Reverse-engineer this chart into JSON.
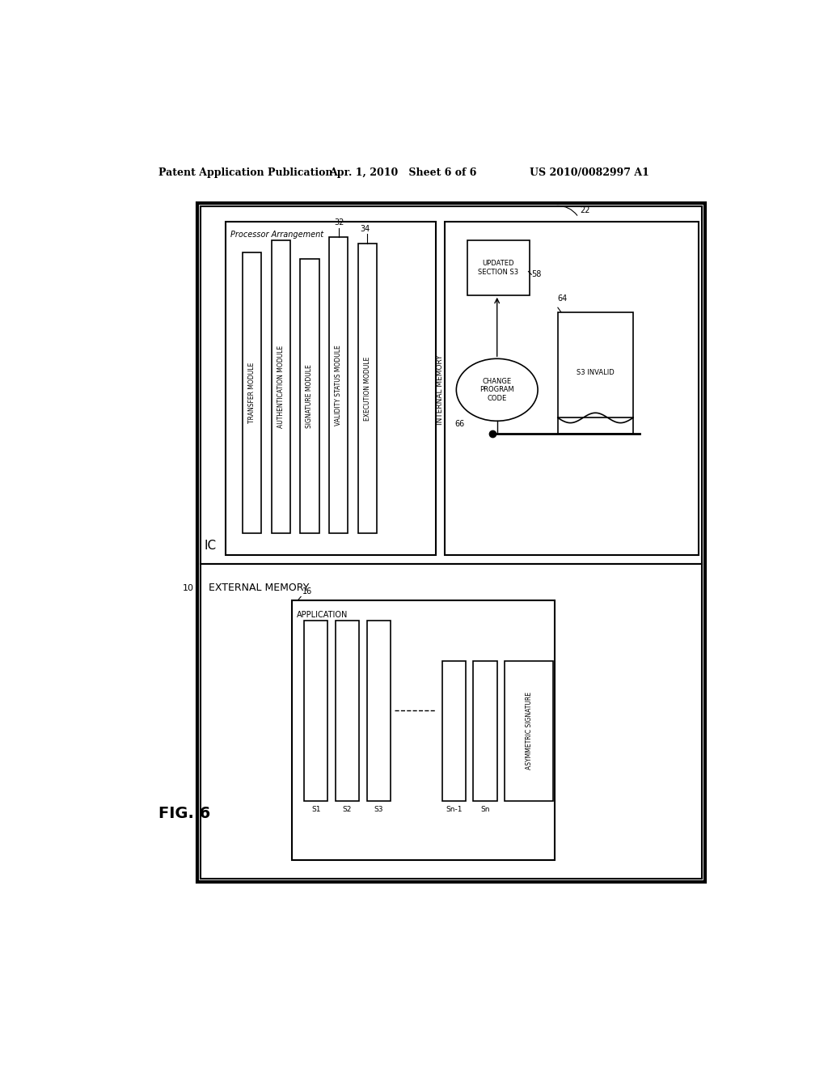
{
  "bg_color": "#ffffff",
  "header_left": "Patent Application Publication",
  "header_mid": "Apr. 1, 2010   Sheet 6 of 6",
  "header_right": "US 2010/0082997 A1",
  "fig_label": "FIG. 6"
}
